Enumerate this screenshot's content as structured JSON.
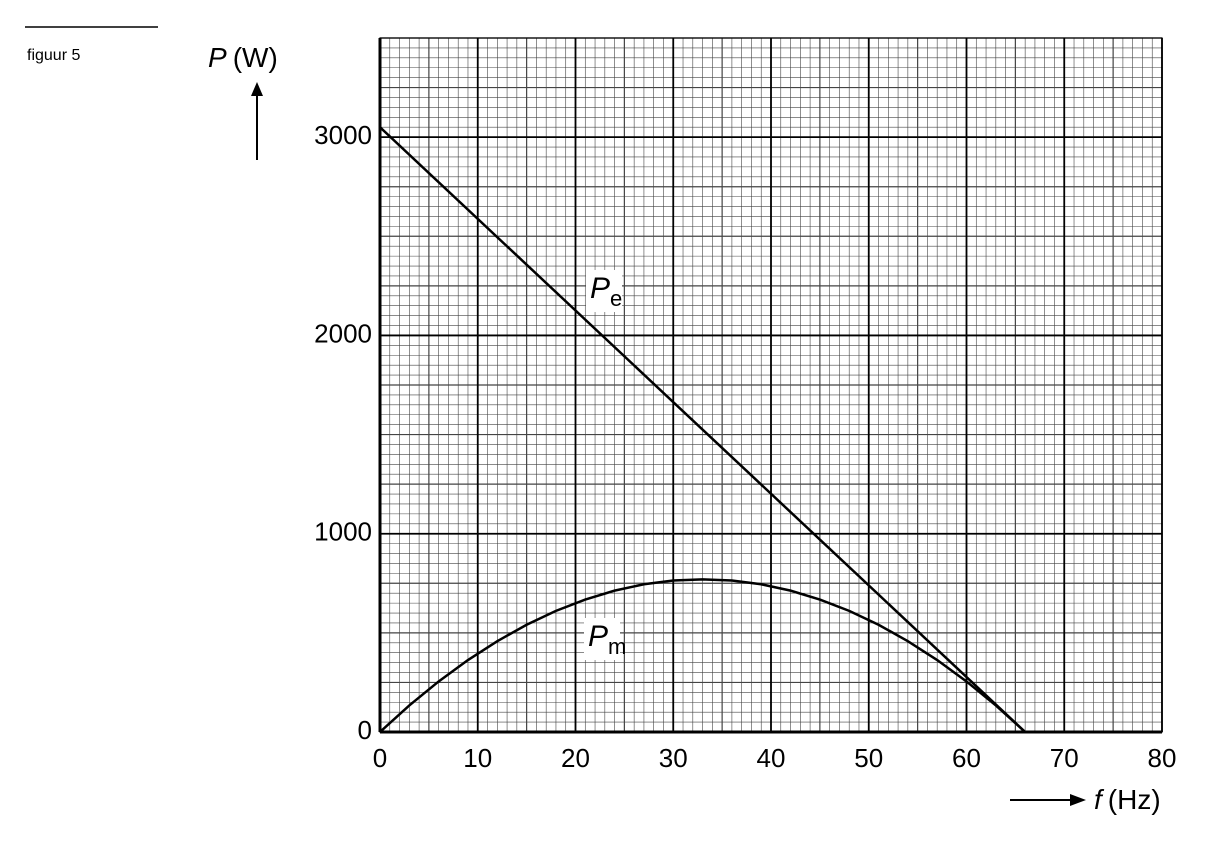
{
  "figure_label": "figuur 5",
  "chart_data": {
    "type": "line",
    "ylabel": {
      "symbol": "P",
      "unit": "(W)"
    },
    "xlabel": {
      "symbol": "f",
      "unit": "(Hz)"
    },
    "xlim": [
      0,
      80
    ],
    "xticks": [
      0,
      10,
      20,
      30,
      40,
      50,
      60,
      70,
      80
    ],
    "ylim": [
      0,
      3500
    ],
    "yticks": [
      0,
      1000,
      2000,
      3000
    ],
    "grid": true,
    "minor_grid": {
      "x": 1,
      "y": 50
    },
    "series": [
      {
        "name": "P",
        "subscript": "e",
        "color": "#000000",
        "x": [
          0,
          66
        ],
        "values": [
          3050,
          0
        ]
      },
      {
        "name": "P",
        "subscript": "m",
        "color": "#000000",
        "x": [
          0,
          3,
          6,
          9,
          12,
          15,
          18,
          21,
          24,
          27,
          30,
          33,
          36,
          39,
          42,
          45,
          48,
          51,
          54,
          57,
          60,
          63,
          66
        ],
        "values": [
          0,
          134,
          255,
          363,
          458,
          541,
          611,
          668,
          713,
          745,
          764,
          770,
          764,
          745,
          713,
          668,
          611,
          541,
          458,
          363,
          255,
          134,
          0
        ]
      }
    ]
  }
}
